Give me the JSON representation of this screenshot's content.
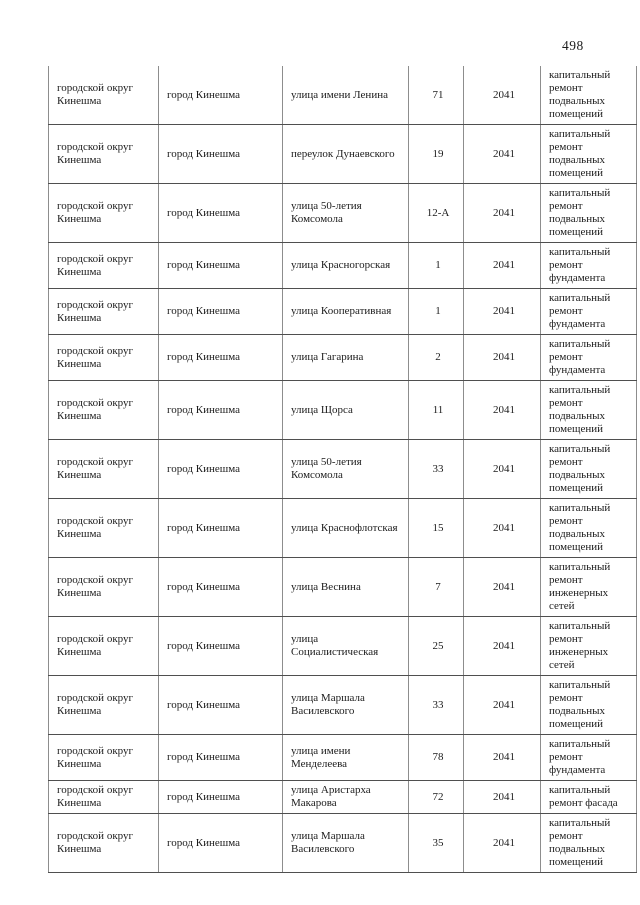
{
  "page": {
    "number": "498"
  },
  "table": {
    "rows": [
      {
        "municipality": "городской округ Кинешма",
        "city": "город Кинешма",
        "street": "улица имени Ленина",
        "house": "71",
        "year": "2041",
        "work": "капитальный ремонт подвальных помещений"
      },
      {
        "municipality": "городской округ Кинешма",
        "city": "город Кинешма",
        "street": "переулок Дунаевского",
        "house": "19",
        "year": "2041",
        "work": "капитальный ремонт подвальных помещений"
      },
      {
        "municipality": "городской округ Кинешма",
        "city": "город Кинешма",
        "street": "улица 50-летия Комсомола",
        "house": "12-А",
        "year": "2041",
        "work": "капитальный ремонт подвальных помещений"
      },
      {
        "municipality": "городской округ Кинешма",
        "city": "город Кинешма",
        "street": "улица Красногорская",
        "house": "1",
        "year": "2041",
        "work": "капитальный ремонт фундамента"
      },
      {
        "municipality": "городской округ Кинешма",
        "city": "город Кинешма",
        "street": "улица Кооперативная",
        "house": "1",
        "year": "2041",
        "work": "капитальный ремонт фундамента"
      },
      {
        "municipality": "городской округ Кинешма",
        "city": "город Кинешма",
        "street": "улица Гагарина",
        "house": "2",
        "year": "2041",
        "work": "капитальный ремонт фундамента"
      },
      {
        "municipality": "городской округ Кинешма",
        "city": "город Кинешма",
        "street": "улица Щорса",
        "house": "11",
        "year": "2041",
        "work": "капитальный ремонт подвальных помещений"
      },
      {
        "municipality": "городской округ Кинешма",
        "city": "город Кинешма",
        "street": "улица 50-летия Комсомола",
        "house": "33",
        "year": "2041",
        "work": "капитальный ремонт подвальных помещений"
      },
      {
        "municipality": "городской округ Кинешма",
        "city": "город Кинешма",
        "street": "улица Краснофлотская",
        "house": "15",
        "year": "2041",
        "work": "капитальный ремонт подвальных помещений"
      },
      {
        "municipality": "городской округ Кинешма",
        "city": "город Кинешма",
        "street": "улица Веснина",
        "house": "7",
        "year": "2041",
        "work": "капитальный ремонт инженерных сетей"
      },
      {
        "municipality": "городской округ Кинешма",
        "city": "город Кинешма",
        "street": "улица Социалистическая",
        "house": "25",
        "year": "2041",
        "work": "капитальный ремонт инженерных сетей"
      },
      {
        "municipality": "городской округ Кинешма",
        "city": "город Кинешма",
        "street": "улица Маршала Василевского",
        "house": "33",
        "year": "2041",
        "work": "капитальный ремонт подвальных помещений"
      },
      {
        "municipality": "городской округ Кинешма",
        "city": "город Кинешма",
        "street": "улица имени Менделеева",
        "house": "78",
        "year": "2041",
        "work": "капитальный ремонт фундамента"
      },
      {
        "municipality": "городской округ Кинешма",
        "city": "город Кинешма",
        "street": "улица Аристарха Макарова",
        "house": "72",
        "year": "2041",
        "work": "капитальный ремонт фасада"
      },
      {
        "municipality": "городской округ Кинешма",
        "city": "город Кинешма",
        "street": "улица Маршала Василевского",
        "house": "35",
        "year": "2041",
        "work": "капитальный ремонт подвальных помещений"
      }
    ]
  }
}
